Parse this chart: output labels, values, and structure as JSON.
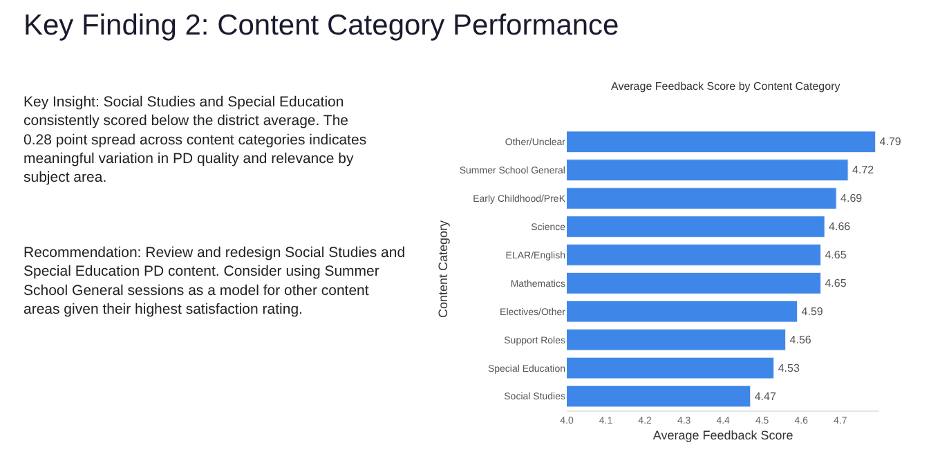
{
  "chart_data": {
    "type": "bar",
    "orientation": "horizontal",
    "title": "Key Finding 2: Content Category Performance",
    "subtitle": "Average Feedback Score by Content Category",
    "xlabel": "Average Feedback Score",
    "ylabel": "Content Category",
    "annotations": [
      "Key Insight: Social Studies and Special Education consistently scored below the district average. The 0.28 point spread across content categories indicates meaningful variation in PD quality and relevance by subject area.",
      "Recommendation: Review and redesign Social Studies and Special Education PD content. Consider using Summer School General sessions as a model for other content areas given their highest satisfaction rating."
    ],
    "categories": [
      "Other/Unclear",
      "Summer School General",
      "Early Childhood/PreK",
      "Science",
      "ELAR/English",
      "Mathematics",
      "Electives/Other",
      "Support Roles",
      "Special Education",
      "Social Studies"
    ],
    "values": [
      4.79,
      4.72,
      4.69,
      4.66,
      4.65,
      4.65,
      4.59,
      4.56,
      4.53,
      4.47
    ],
    "color": "#3e87e8",
    "xlim": [
      4.0,
      4.8
    ],
    "xticks": [
      {
        "value": 4.0,
        "label": "4.0"
      },
      4.1,
      4.2,
      4.3,
      4.4,
      4.5,
      4.6,
      4.7
    ],
    "data_labels": true,
    "grid": false
  }
}
